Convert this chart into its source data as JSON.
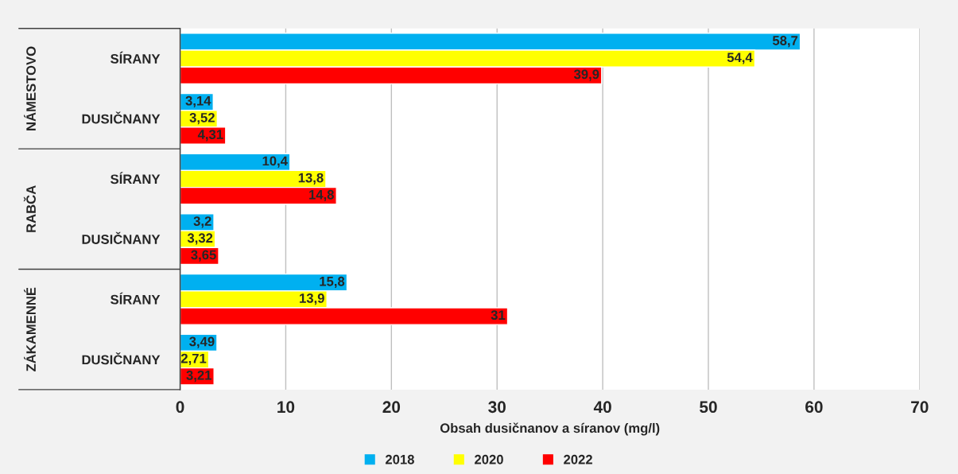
{
  "chart_data": {
    "type": "bar",
    "orientation": "horizontal",
    "categories": [
      "SÍRANY",
      "DUSIČNANY",
      "SÍRANY",
      "DUSIČNANY",
      "SÍRANY",
      "DUSIČNANY"
    ],
    "annotations": [
      "NÁMESTOVO",
      "RABČA",
      "ZÁKAMENNÉ"
    ],
    "xlabel": "Obsah dusičnanov a síranov (mg/l)",
    "series": [
      {
        "name": "2018",
        "color": "#00b0f0",
        "values": [
          58.7,
          3.14,
          10.4,
          3.2,
          15.8,
          3.49
        ],
        "value_labels": [
          "58,7",
          "3,14",
          "10,4",
          "3,2",
          "15,8",
          "3,49"
        ]
      },
      {
        "name": "2020",
        "color": "#ffff00",
        "values": [
          54.4,
          3.52,
          13.8,
          3.32,
          13.9,
          2.71
        ],
        "value_labels": [
          "54,4",
          "3,52",
          "13,8",
          "3,32",
          "13,9",
          "2,71"
        ]
      },
      {
        "name": "2022",
        "color": "#ff0000",
        "values": [
          39.9,
          4.31,
          14.8,
          3.65,
          31,
          3.21
        ],
        "value_labels": [
          "39,9",
          "4,31",
          "14,8",
          "3,65",
          "31",
          "3,21"
        ]
      }
    ],
    "xlim": [
      0,
      70
    ],
    "xticks": [
      0,
      10,
      20,
      30,
      40,
      50,
      60,
      70
    ],
    "grid": "x",
    "legend": "bottom"
  }
}
